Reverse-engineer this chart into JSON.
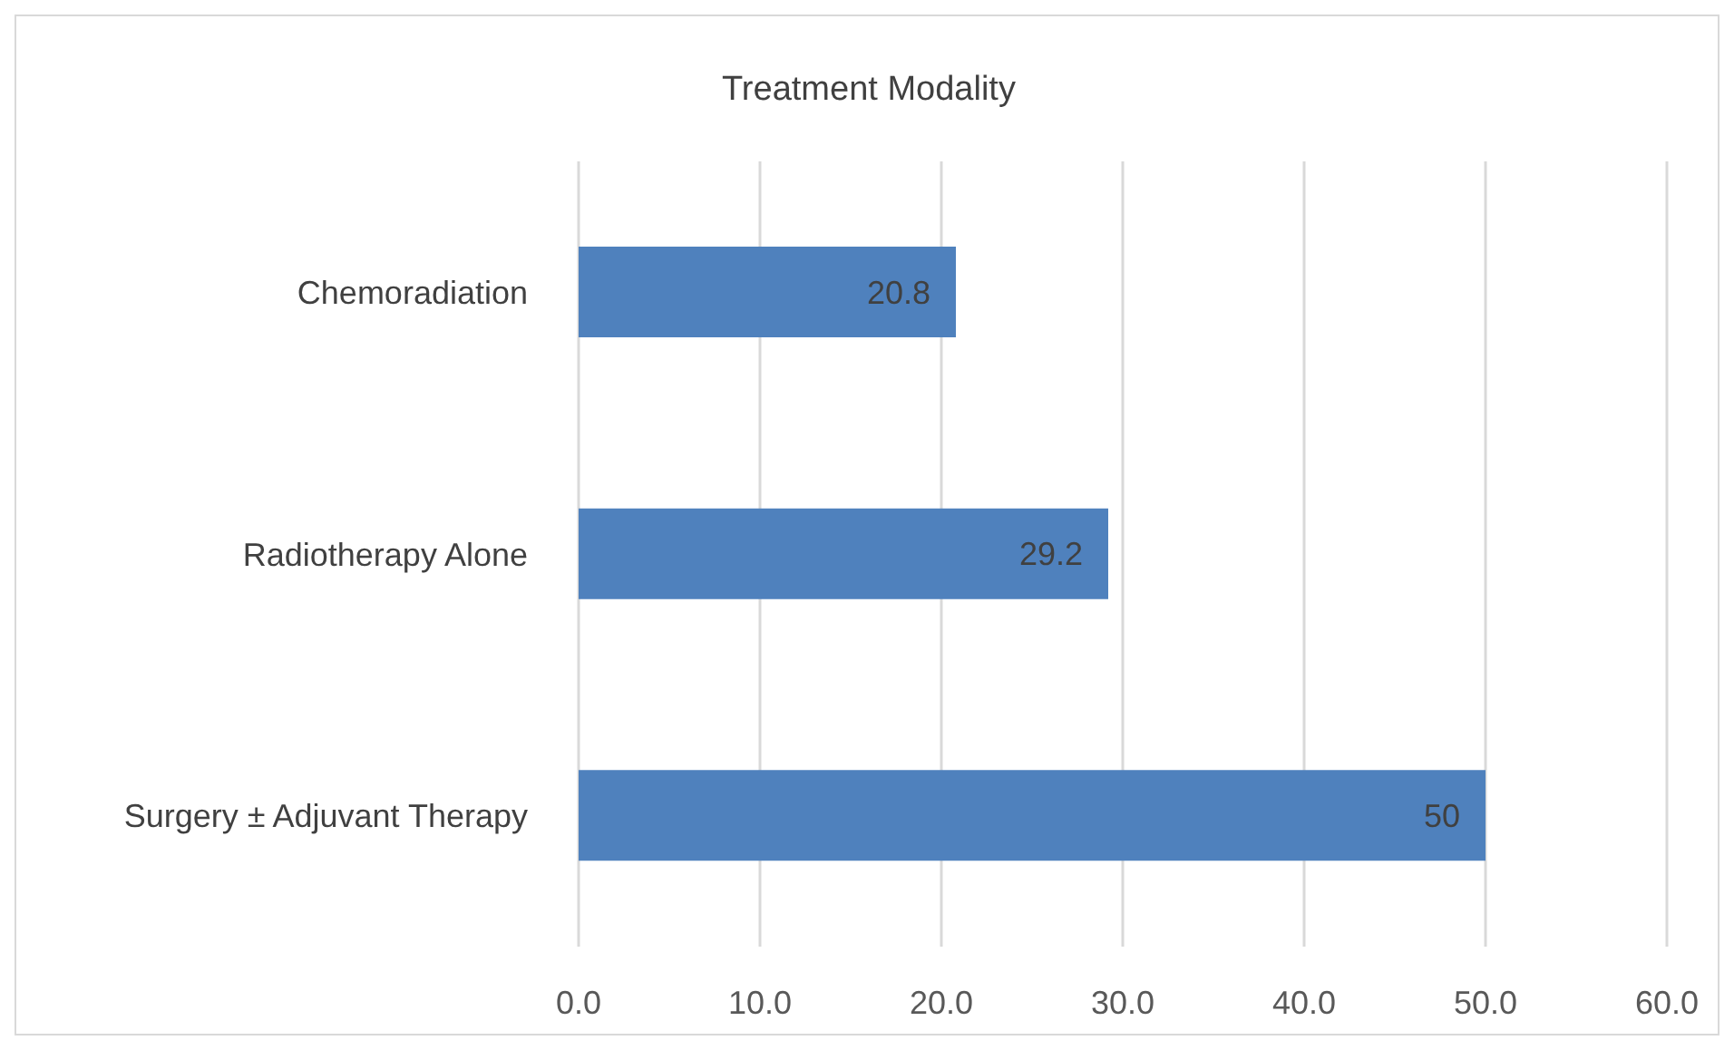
{
  "chart_data": {
    "type": "bar",
    "orientation": "horizontal",
    "title": "Treatment Modality",
    "categories": [
      "Chemoradiation",
      "Radiotherapy Alone",
      "Surgery ± Adjuvant Therapy"
    ],
    "values": [
      20.8,
      29.2,
      50
    ],
    "color": "#4f81bd",
    "data_labels": true,
    "xlim": [
      0,
      60
    ],
    "xticks": [
      {
        "value": 0,
        "label": "0.0"
      },
      {
        "value": 10,
        "label": "10.0"
      },
      {
        "value": 20,
        "label": "20.0"
      },
      {
        "value": 30,
        "label": "30.0"
      },
      {
        "value": 40,
        "label": "40.0"
      },
      {
        "value": 50,
        "label": "50.0"
      },
      {
        "value": 60,
        "label": "60.0"
      }
    ],
    "grid": "x",
    "legend": false
  }
}
